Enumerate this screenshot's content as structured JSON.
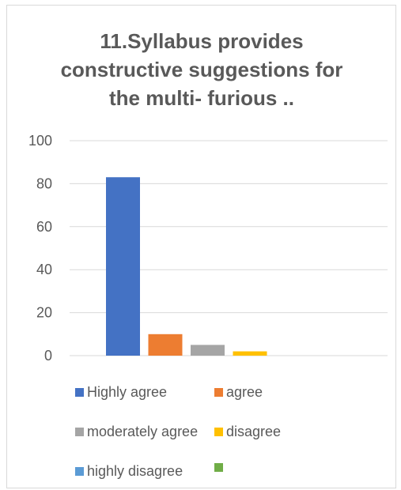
{
  "chart_data": {
    "type": "bar",
    "title_lines": [
      "11.Syllabus provides",
      "constructive suggestions for",
      "the multi- furious .."
    ],
    "xlabel": "",
    "ylabel": "",
    "ylim": [
      0,
      100
    ],
    "yticks": [
      "0",
      "20",
      "40",
      "60",
      "80",
      "100"
    ],
    "grid": true,
    "legend_position": "bottom",
    "series": [
      {
        "name": "Highly agree",
        "value": 83,
        "color": "#4472C4"
      },
      {
        "name": "agree",
        "value": 10,
        "color": "#ED7D31"
      },
      {
        "name": "moderately agree",
        "value": 5,
        "color": "#A5A5A5"
      },
      {
        "name": "disagree",
        "value": 2,
        "color": "#FFC000"
      },
      {
        "name": "highly disagree",
        "value": 0,
        "color": "#5B9BD5"
      },
      {
        "name": "",
        "value": 0,
        "color": "#70AD47"
      }
    ]
  }
}
